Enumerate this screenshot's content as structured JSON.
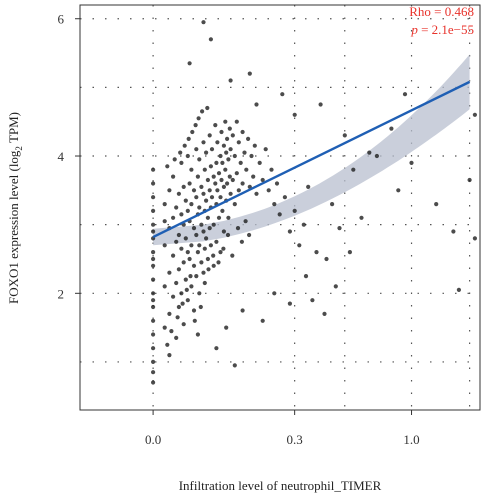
{
  "chart_data": {
    "type": "scatter",
    "xlabel": "Infiltration level of neutrophil_TIMER",
    "ylabel_main": "FOXO1 expression level (log",
    "ylabel_sub": "2",
    "ylabel_tail": " TPM)",
    "x_scale": "sqrt",
    "xlim": [
      -0.08,
      1.6
    ],
    "ylim": [
      0.3,
      6.2
    ],
    "x_ticks": [
      0.0,
      0.3,
      1.0
    ],
    "x_tick_labels": [
      "0.0",
      "0.3",
      "1.0"
    ],
    "y_ticks": [
      2,
      4,
      6
    ],
    "y_tick_labels": [
      "2",
      "4",
      "6"
    ],
    "grid": "dotted",
    "annotation": {
      "rho_label": "Rho = 0.468",
      "p_symbol": "p",
      "p_rest": " = 2.1e−55"
    },
    "regression": {
      "x0": 0.0,
      "y0": 2.82,
      "x1": 1.5,
      "y1": 5.08,
      "ci_start": 0.12,
      "ci_end": 0.4,
      "line_color": "#1f5fb4",
      "ci_color": "#b8bfcf"
    },
    "point_color": "#1a1a1a",
    "points": [
      [
        0.0,
        3.4
      ],
      [
        0.0,
        3.2
      ],
      [
        0.0,
        3.0
      ],
      [
        0.0,
        2.8
      ],
      [
        0.0,
        2.6
      ],
      [
        0.0,
        2.4
      ],
      [
        0.0,
        2.2
      ],
      [
        0.0,
        2.0
      ],
      [
        0.0,
        1.8
      ],
      [
        0.0,
        1.6
      ],
      [
        0.0,
        1.4
      ],
      [
        0.0,
        1.2
      ],
      [
        0.0,
        1.0
      ],
      [
        0.0,
        0.85
      ],
      [
        0.0,
        0.7
      ],
      [
        0.0,
        3.6
      ],
      [
        0.0,
        3.8
      ],
      [
        0.0,
        2.9
      ],
      [
        0.0,
        2.5
      ],
      [
        0.0,
        1.9
      ],
      [
        0.002,
        3.3
      ],
      [
        0.002,
        2.7
      ],
      [
        0.002,
        2.1
      ],
      [
        0.002,
        1.5
      ],
      [
        0.002,
        3.05
      ],
      [
        0.004,
        3.5
      ],
      [
        0.004,
        2.95
      ],
      [
        0.004,
        2.3
      ],
      [
        0.004,
        1.7
      ],
      [
        0.004,
        1.1
      ],
      [
        0.006,
        3.7
      ],
      [
        0.006,
        3.1
      ],
      [
        0.006,
        2.55
      ],
      [
        0.006,
        1.95
      ],
      [
        0.008,
        3.25
      ],
      [
        0.008,
        2.75
      ],
      [
        0.008,
        2.15
      ],
      [
        0.008,
        1.35
      ],
      [
        0.01,
        3.45
      ],
      [
        0.01,
        2.85
      ],
      [
        0.01,
        2.35
      ],
      [
        0.01,
        1.8
      ],
      [
        0.012,
        3.9
      ],
      [
        0.012,
        3.15
      ],
      [
        0.012,
        2.65
      ],
      [
        0.012,
        2.0
      ],
      [
        0.014,
        3.55
      ],
      [
        0.014,
        3.0
      ],
      [
        0.014,
        2.45
      ],
      [
        0.014,
        1.55
      ],
      [
        0.016,
        3.35
      ],
      [
        0.016,
        2.8
      ],
      [
        0.016,
        2.2
      ],
      [
        0.018,
        4.0
      ],
      [
        0.018,
        3.2
      ],
      [
        0.018,
        2.6
      ],
      [
        0.018,
        1.9
      ],
      [
        0.02,
        3.6
      ],
      [
        0.02,
        3.05
      ],
      [
        0.02,
        2.5
      ],
      [
        0.022,
        3.8
      ],
      [
        0.022,
        3.3
      ],
      [
        0.022,
        2.7
      ],
      [
        0.022,
        2.1
      ],
      [
        0.025,
        3.5
      ],
      [
        0.025,
        2.95
      ],
      [
        0.025,
        2.4
      ],
      [
        0.025,
        1.75
      ],
      [
        0.028,
        4.1
      ],
      [
        0.028,
        3.4
      ],
      [
        0.028,
        2.85
      ],
      [
        0.028,
        2.25
      ],
      [
        0.03,
        3.7
      ],
      [
        0.03,
        3.15
      ],
      [
        0.03,
        2.6
      ],
      [
        0.032,
        3.95
      ],
      [
        0.032,
        3.25
      ],
      [
        0.032,
        2.7
      ],
      [
        0.032,
        2.0
      ],
      [
        0.035,
        3.55
      ],
      [
        0.035,
        3.0
      ],
      [
        0.035,
        2.45
      ],
      [
        0.038,
        4.2
      ],
      [
        0.038,
        3.45
      ],
      [
        0.038,
        2.9
      ],
      [
        0.038,
        2.3
      ],
      [
        0.04,
        3.8
      ],
      [
        0.04,
        3.2
      ],
      [
        0.04,
        2.65
      ],
      [
        0.042,
        4.05
      ],
      [
        0.042,
        3.35
      ],
      [
        0.042,
        2.8
      ],
      [
        0.045,
        3.65
      ],
      [
        0.045,
        3.1
      ],
      [
        0.045,
        2.5
      ],
      [
        0.048,
        4.3
      ],
      [
        0.048,
        3.5
      ],
      [
        0.048,
        2.95
      ],
      [
        0.05,
        3.85
      ],
      [
        0.05,
        3.25
      ],
      [
        0.05,
        2.7
      ],
      [
        0.052,
        4.1
      ],
      [
        0.052,
        3.4
      ],
      [
        0.055,
        3.7
      ],
      [
        0.055,
        3.0
      ],
      [
        0.055,
        2.4
      ],
      [
        0.058,
        4.45
      ],
      [
        0.058,
        3.6
      ],
      [
        0.06,
        3.9
      ],
      [
        0.06,
        3.3
      ],
      [
        0.06,
        2.75
      ],
      [
        0.062,
        4.2
      ],
      [
        0.062,
        3.5
      ],
      [
        0.065,
        3.75
      ],
      [
        0.065,
        3.1
      ],
      [
        0.068,
        4.0
      ],
      [
        0.068,
        3.4
      ],
      [
        0.068,
        2.6
      ],
      [
        0.07,
        4.35
      ],
      [
        0.07,
        3.65
      ],
      [
        0.072,
        3.9
      ],
      [
        0.072,
        3.2
      ],
      [
        0.075,
        4.15
      ],
      [
        0.075,
        3.55
      ],
      [
        0.075,
        2.9
      ],
      [
        0.078,
        4.5
      ],
      [
        0.078,
        3.8
      ],
      [
        0.08,
        4.05
      ],
      [
        0.08,
        3.35
      ],
      [
        0.082,
        4.25
      ],
      [
        0.082,
        3.6
      ],
      [
        0.085,
        3.95
      ],
      [
        0.085,
        3.1
      ],
      [
        0.088,
        4.4
      ],
      [
        0.088,
        3.7
      ],
      [
        0.09,
        4.1
      ],
      [
        0.09,
        3.45
      ],
      [
        0.095,
        4.3
      ],
      [
        0.095,
        3.65
      ],
      [
        0.1,
        4.0
      ],
      [
        0.1,
        3.3
      ],
      [
        0.105,
        4.5
      ],
      [
        0.105,
        3.75
      ],
      [
        0.11,
        4.2
      ],
      [
        0.11,
        3.5
      ],
      [
        0.115,
        3.9
      ],
      [
        0.12,
        4.35
      ],
      [
        0.12,
        3.6
      ],
      [
        0.125,
        4.05
      ],
      [
        0.13,
        3.8
      ],
      [
        0.135,
        4.25
      ],
      [
        0.14,
        3.55
      ],
      [
        0.145,
        4.0
      ],
      [
        0.15,
        3.7
      ],
      [
        0.155,
        4.15
      ],
      [
        0.16,
        3.45
      ],
      [
        0.17,
        3.9
      ],
      [
        0.18,
        3.65
      ],
      [
        0.19,
        4.1
      ],
      [
        0.2,
        3.5
      ],
      [
        0.21,
        3.8
      ],
      [
        0.22,
        3.3
      ],
      [
        0.23,
        3.6
      ],
      [
        0.24,
        3.15
      ],
      [
        0.26,
        3.4
      ],
      [
        0.28,
        2.9
      ],
      [
        0.3,
        3.2
      ],
      [
        0.32,
        2.7
      ],
      [
        0.34,
        3.0
      ],
      [
        0.36,
        3.55
      ],
      [
        0.038,
        5.95
      ],
      [
        0.05,
        5.7
      ],
      [
        0.02,
        5.35
      ],
      [
        0.09,
        5.1
      ],
      [
        0.14,
        5.2
      ],
      [
        0.16,
        4.75
      ],
      [
        0.25,
        4.9
      ],
      [
        0.3,
        4.6
      ],
      [
        0.42,
        4.75
      ],
      [
        0.55,
        4.3
      ],
      [
        0.08,
        1.5
      ],
      [
        0.12,
        1.75
      ],
      [
        0.06,
        1.2
      ],
      [
        0.1,
        0.95
      ],
      [
        0.18,
        1.6
      ],
      [
        0.22,
        2.0
      ],
      [
        0.28,
        1.85
      ],
      [
        0.35,
        2.25
      ],
      [
        0.45,
        2.5
      ],
      [
        0.5,
        2.1
      ],
      [
        0.6,
        3.8
      ],
      [
        0.7,
        4.05
      ],
      [
        0.75,
        4.0
      ],
      [
        0.9,
        3.5
      ],
      [
        1.0,
        3.9
      ],
      [
        1.2,
        3.3
      ],
      [
        1.35,
        2.9
      ],
      [
        1.5,
        3.65
      ],
      [
        1.55,
        2.8
      ],
      [
        1.4,
        2.05
      ],
      [
        0.48,
        3.3
      ],
      [
        0.52,
        2.95
      ],
      [
        0.58,
        2.6
      ],
      [
        0.65,
        3.1
      ],
      [
        0.85,
        4.4
      ],
      [
        0.95,
        4.9
      ],
      [
        0.38,
        1.9
      ],
      [
        0.4,
        2.6
      ],
      [
        0.44,
        1.7
      ],
      [
        1.55,
        4.6
      ],
      [
        0.003,
        3.85
      ],
      [
        0.007,
        3.95
      ],
      [
        0.011,
        4.05
      ],
      [
        0.015,
        4.15
      ],
      [
        0.019,
        4.25
      ],
      [
        0.023,
        4.35
      ],
      [
        0.027,
        4.45
      ],
      [
        0.031,
        4.55
      ],
      [
        0.036,
        4.65
      ],
      [
        0.044,
        4.7
      ],
      [
        0.003,
        1.25
      ],
      [
        0.005,
        1.45
      ],
      [
        0.009,
        1.65
      ],
      [
        0.013,
        1.85
      ],
      [
        0.017,
        2.05
      ],
      [
        0.021,
        2.25
      ],
      [
        0.026,
        1.6
      ],
      [
        0.03,
        1.4
      ],
      [
        0.034,
        1.8
      ],
      [
        0.04,
        2.15
      ],
      [
        0.046,
        2.35
      ],
      [
        0.054,
        2.55
      ],
      [
        0.064,
        2.45
      ],
      [
        0.074,
        2.65
      ],
      [
        0.084,
        2.85
      ],
      [
        0.094,
        2.55
      ],
      [
        0.108,
        2.95
      ],
      [
        0.118,
        2.75
      ],
      [
        0.128,
        3.05
      ],
      [
        0.138,
        2.85
      ]
    ]
  }
}
